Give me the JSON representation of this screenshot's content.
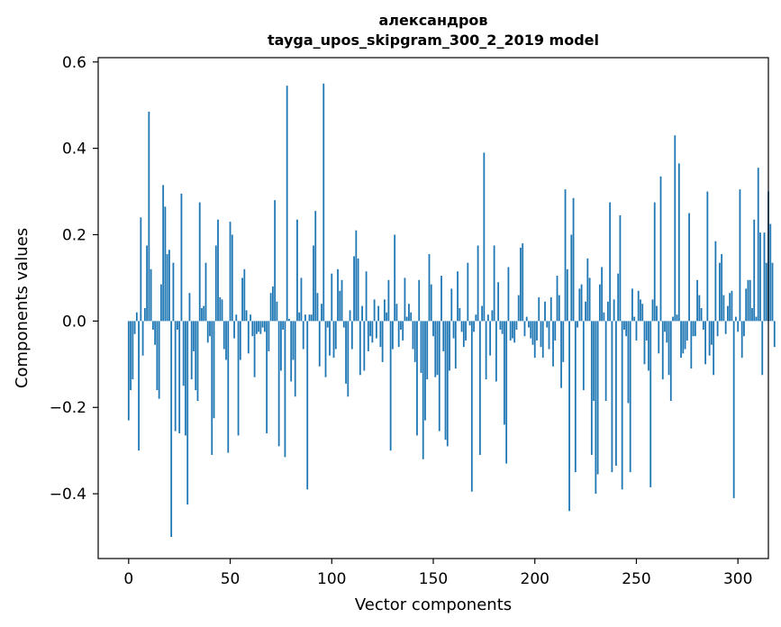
{
  "chart_data": {
    "type": "bar",
    "title": "александров",
    "subtitle": "tayga_upos_skipgram_300_2_2019 model",
    "xlabel": "Vector components",
    "ylabel": "Components values",
    "xlim": [
      -15,
      315
    ],
    "ylim": [
      -0.55,
      0.61
    ],
    "xticks": [
      0,
      50,
      100,
      150,
      200,
      250,
      300
    ],
    "yticks": [
      -0.4,
      -0.2,
      0.0,
      0.2,
      0.4,
      0.6
    ],
    "ytick_labels": [
      "−0.4",
      "−0.2",
      "0.0",
      "0.2",
      "0.4",
      "0.6"
    ],
    "xtick_labels": [
      "0",
      "50",
      "100",
      "150",
      "200",
      "250",
      "300"
    ],
    "bar_color": "#1f77b4",
    "values": [
      -0.23,
      -0.16,
      -0.135,
      -0.03,
      0.02,
      -0.3,
      0.24,
      -0.08,
      0.03,
      0.175,
      0.485,
      0.12,
      -0.02,
      -0.055,
      -0.16,
      -0.18,
      0.085,
      0.315,
      0.265,
      0.155,
      0.165,
      -0.5,
      0.135,
      -0.255,
      -0.02,
      -0.26,
      0.295,
      -0.15,
      -0.265,
      -0.425,
      0.065,
      -0.135,
      -0.07,
      -0.16,
      -0.185,
      0.275,
      0.03,
      0.035,
      0.135,
      -0.05,
      -0.035,
      -0.31,
      -0.225,
      0.175,
      0.235,
      0.055,
      0.05,
      -0.065,
      -0.09,
      -0.305,
      0.23,
      0.2,
      -0.04,
      0.015,
      -0.265,
      -0.09,
      0.1,
      0.12,
      0.025,
      -0.075,
      0.015,
      -0.035,
      -0.13,
      -0.03,
      -0.025,
      -0.03,
      -0.015,
      -0.025,
      -0.26,
      -0.07,
      0.065,
      0.08,
      0.28,
      0.045,
      -0.29,
      -0.115,
      -0.02,
      -0.315,
      0.545,
      0.005,
      -0.14,
      -0.09,
      -0.175,
      0.235,
      0.02,
      0.1,
      -0.065,
      0.015,
      -0.39,
      0.015,
      0.015,
      0.175,
      0.255,
      0.065,
      -0.105,
      0.04,
      0.55,
      -0.13,
      -0.015,
      -0.08,
      0.11,
      -0.085,
      -0.065,
      0.12,
      0.07,
      0.095,
      -0.015,
      -0.145,
      -0.175,
      0.025,
      -0.065,
      0.15,
      0.21,
      0.145,
      -0.125,
      0.035,
      -0.115,
      0.115,
      -0.07,
      -0.035,
      -0.05,
      0.05,
      -0.04,
      0.035,
      -0.06,
      -0.095,
      0.05,
      0.02,
      0.095,
      -0.3,
      -0.065,
      0.2,
      0.04,
      -0.06,
      -0.02,
      -0.045,
      0.1,
      0.01,
      0.04,
      0.02,
      -0.065,
      -0.095,
      -0.265,
      0.095,
      -0.12,
      -0.32,
      -0.23,
      -0.135,
      0.155,
      0.085,
      -0.035,
      -0.13,
      -0.125,
      -0.255,
      0.105,
      -0.07,
      -0.275,
      -0.29,
      -0.115,
      0.075,
      -0.04,
      -0.11,
      0.115,
      0.03,
      -0.025,
      -0.06,
      -0.045,
      0.135,
      -0.01,
      -0.395,
      -0.025,
      0.015,
      0.175,
      -0.31,
      0.035,
      0.39,
      -0.135,
      0.015,
      -0.08,
      0.025,
      0.175,
      -0.14,
      0.09,
      -0.02,
      -0.03,
      -0.24,
      -0.33,
      0.125,
      -0.045,
      -0.04,
      -0.05,
      -0.02,
      0.06,
      0.17,
      0.18,
      -0.035,
      0.01,
      -0.015,
      -0.04,
      -0.055,
      -0.085,
      -0.045,
      0.055,
      -0.06,
      -0.085,
      0.045,
      -0.015,
      -0.065,
      0.055,
      -0.105,
      -0.045,
      0.105,
      0.06,
      -0.155,
      -0.095,
      0.305,
      0.12,
      -0.44,
      0.2,
      0.285,
      -0.35,
      -0.015,
      0.075,
      0.085,
      -0.16,
      0.045,
      0.145,
      0.1,
      -0.31,
      -0.185,
      -0.4,
      -0.355,
      0.085,
      0.125,
      0.02,
      -0.185,
      0.045,
      0.275,
      -0.35,
      0.05,
      -0.335,
      0.11,
      0.245,
      -0.39,
      -0.02,
      -0.035,
      -0.19,
      -0.35,
      0.075,
      0.01,
      -0.045,
      0.07,
      0.05,
      0.04,
      -0.1,
      -0.045,
      -0.115,
      -0.385,
      0.05,
      0.275,
      0.035,
      -0.075,
      0.335,
      -0.135,
      -0.025,
      -0.05,
      -0.125,
      -0.185,
      0.01,
      0.43,
      0.015,
      0.365,
      -0.085,
      -0.075,
      -0.065,
      -0.045,
      0.25,
      -0.11,
      -0.035,
      -0.035,
      0.095,
      0.06,
      0.03,
      -0.02,
      -0.1,
      0.3,
      -0.08,
      -0.055,
      -0.125,
      0.185,
      -0.035,
      0.135,
      0.155,
      0.06,
      -0.03,
      0.035,
      0.065,
      0.07,
      -0.41,
      0.01,
      -0.025,
      0.305,
      -0.085,
      -0.035,
      0.075,
      0.095,
      0.095,
      0.03,
      0.235,
      0.01,
      0.355,
      0.205,
      -0.125,
      0.205,
      0.135,
      0.3,
      0.225,
      0.135,
      -0.06
    ],
    "values_note": "estimated"
  }
}
